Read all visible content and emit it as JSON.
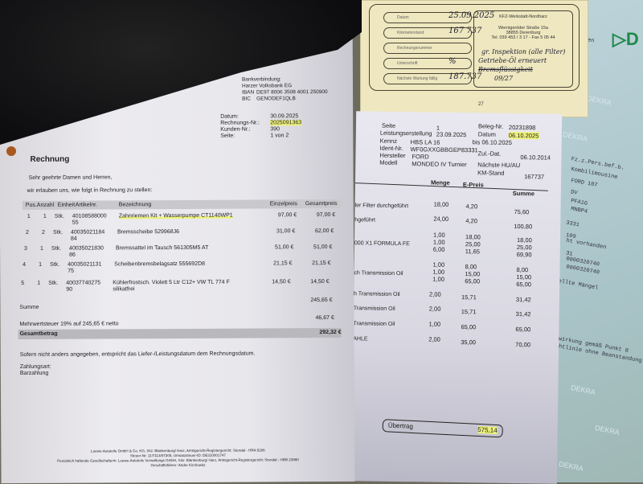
{
  "invoice": {
    "bank_label": "Bankverbindung:",
    "bank": "Harzer Volksbank EG",
    "iban_label": "IBAN",
    "iban": "DE97 8006 3508 4001 250900",
    "bic_label": "BIC",
    "bic": "GENODEF1QLB",
    "meta": [
      {
        "label": "Datum:",
        "value": "30.09.2025"
      },
      {
        "label": "Rechnungs-Nr.:",
        "value": "2025091363"
      },
      {
        "label": "Kunden-Nr.:",
        "value": "390"
      },
      {
        "label": "Seite:",
        "value": "1 von 2"
      }
    ],
    "title": "Rechnung",
    "greeting": "Sehr geehrte Damen und Herren,",
    "intro": "wir erlauben uns, wie folgt in Rechnung zu stellen:",
    "headers": [
      "Pos.",
      "Anzahl",
      "Einheit",
      "Artikelnr.",
      "Bezeichnung",
      "Einzelpreis",
      "Gesamtpreis"
    ],
    "items": [
      {
        "pos": "1",
        "qty": "1",
        "unit": "Stk.",
        "art": "40108588000",
        "art2": "55",
        "desc": "Zahnriemen Kit + Wasserpumpe CT1140WP1",
        "desc2": "",
        "price": "97,00 €",
        "total": "97,00 €"
      },
      {
        "pos": "2",
        "qty": "2",
        "unit": "Stk.",
        "art": "40035021184",
        "art2": "84",
        "desc": "Bremsscheibe 529968J6",
        "desc2": "",
        "price": "31,00 €",
        "total": "62,00 €"
      },
      {
        "pos": "3",
        "qty": "1",
        "unit": "Stk.",
        "art": "40035021830",
        "art2": "86",
        "desc": "Bremssattel im Tausch 561305M5 AT",
        "desc2": "",
        "price": "51,00 €",
        "total": "51,00 €"
      },
      {
        "pos": "4",
        "qty": "1",
        "unit": "Stk.",
        "art": "40035021131",
        "art2": "75",
        "desc": "Scheibenbremsbelagsatz 555692D8",
        "desc2": "",
        "price": "21,15 €",
        "total": "21,15 €"
      },
      {
        "pos": "5",
        "qty": "1",
        "unit": "Stk.",
        "art": "40037740275",
        "art2": "90",
        "desc": "Kühlerfrostsch. Violett 5 Ltr C12+  VW TL 774 F",
        "desc2": "silikatfrei",
        "price": "14,50 €",
        "total": "14,50 €"
      }
    ],
    "sum_label": "Summe",
    "sum": "245,65 €",
    "vat_label": "Mehrwertsteuer 19% auf 245,65 € netto",
    "vat": "46,67 €",
    "total_label": "Gesamtbetrag",
    "total": "292,32 €",
    "note": "Sofern nicht anders angegeben, entspricht das Liefer-/Leistungsdatum dem Rechnungsdatum.",
    "payment_label": "Zahlungsart:",
    "payment": "Barzahlung",
    "footer": [
      "Loewe-Autoteile GmbH & Co. KG, Sitz: Blankenburg/ Harz, Amtsgericht-Registergericht: Stendal - HRA 5288",
      "Steuer-Nr: 117/113/07305, Umsatzsteuer-ID: DE310001747",
      "Persönlich haftende Gesellschafterin: Loewe-Autoteile Verwaltungs GmbH, Sitz: Blankenburg/ Harz, Amtsgericht-Registergericht: Stendal - HRB 23990",
      "Geschäftsführer: Andre Kirchowitz"
    ]
  },
  "workshop": {
    "seite_label": "Seite",
    "seite": "1",
    "beleg_label": "Beleg-Nr.",
    "beleg": "20231898",
    "leistung_label": "Leistungserstellung",
    "leistung": "23.09.2025",
    "datum_label": "Datum",
    "datum": "06.10.2025",
    "bis": "bis 06.10.2025",
    "kennz_label": "Kennz",
    "kennz": "HBS LA 16",
    "ident_label": "Ident-Nr.",
    "ident": "WF0GXXGBBGEP83331",
    "hersteller_label": "Hersteller",
    "hersteller": "FORD",
    "zul_label": "Zul.-Dat.",
    "zul": "06.10.2014",
    "modell_label": "Modell",
    "modell": "MONDEO IV Turnier",
    "hu_label": "Nächste HU/AU",
    "km_label": "KM-Stand",
    "km": "167737",
    "headers": [
      "Menge",
      "E-Preis",
      "Summe"
    ],
    "lines": [
      {
        "desc": "ler Filter durchgeführt",
        "qty": "18,00",
        "price": "4,20",
        "sum": "75,60"
      },
      {
        "desc": "hgeführt",
        "qty": "24,00",
        "price": "4,20",
        "sum": "100,80"
      },
      {
        "desc": "",
        "qty": "1,00",
        "price": "18,00",
        "sum": "18,00"
      },
      {
        "desc": "000 X1 FORMULA FE",
        "qty": "1,00",
        "price": "25,00",
        "sum": "25,00"
      },
      {
        "desc": "",
        "qty": "6,00",
        "price": "11,65",
        "sum": "69,90"
      },
      {
        "desc": "",
        "qty": "1,00",
        "price": "8,00",
        "sum": "8,00"
      },
      {
        "desc": "ch Transmission Oil",
        "qty": "1,00",
        "price": "15,00",
        "sum": "15,00"
      },
      {
        "desc": "",
        "qty": "1,00",
        "price": "65,00",
        "sum": "65,00"
      },
      {
        "desc": "h Transmission Oil",
        "qty": "2,00",
        "price": "15,71",
        "sum": "31,42"
      },
      {
        "desc": "Transmission Oil",
        "qty": "2,00",
        "price": "15,71",
        "sum": "31,42"
      },
      {
        "desc": "Transmission Oil",
        "qty": "1,00",
        "price": "65,00",
        "sum": "65,00"
      },
      {
        "desc": "AHLE",
        "qty": "2,00",
        "price": "35,00",
        "sum": "70,00"
      }
    ],
    "carry_label": "Übertrag",
    "carry": "575,14"
  },
  "booklet": {
    "fields": [
      {
        "label": "Datum",
        "value": "25.09.2025"
      },
      {
        "label": "Kilometerstand",
        "value": "167 737"
      },
      {
        "label": "Rechnungsnummer",
        "value": ""
      },
      {
        "label": "Unterschrift",
        "value": "%"
      },
      {
        "label": "Nächste Wartung fällig",
        "value": "187.737"
      }
    ],
    "stamp": [
      "KFZ-Werkstatt-Nordharz",
      "Wernigeröder Straße 15a",
      "38855 Derenburg",
      "Tel. 039 453 / 3 17 - Fax 5 05 44"
    ],
    "handwriting": [
      "gr. Inspektion (alle Filter)",
      "Getriebe-Öl erneuert",
      "Bremsflüssigkeit",
      "09/27"
    ],
    "page": "27"
  },
  "dekra": {
    "watermark": "DEKRA",
    "lines": [
      "Dresden",
      "Fz.z.Pers.bef.b.",
      "Kombilimousine",
      "FORD 107",
      "DV",
      "PFA1G",
      "MNBP4",
      "3331",
      "109",
      "ht vorhanden",
      "31",
      "0000320740",
      "0000320740",
      "tellte Mängel",
      "nwirkung gemäß Punkt 8",
      "chtlinie ohne Beanstandung"
    ]
  }
}
